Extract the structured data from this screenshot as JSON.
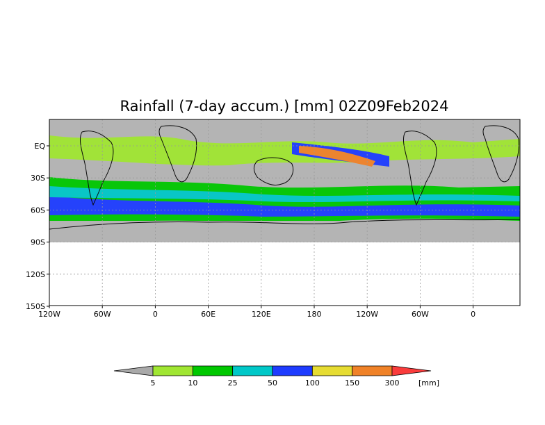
{
  "title": "Rainfall (7-day accum.) [mm] 02Z09Feb2024",
  "map": {
    "y_ticks": [
      "EQ",
      "30S",
      "60S",
      "90S",
      "120S",
      "150S"
    ],
    "x_ticks": [
      "120W",
      "60W",
      "0",
      "60E",
      "120E",
      "180",
      "120W",
      "60W",
      "0"
    ],
    "background_color": "#b4b4b4"
  },
  "legend": {
    "unit": "[mm]",
    "labels": [
      "5",
      "10",
      "25",
      "50",
      "100",
      "150",
      "300"
    ],
    "colors": [
      "#a9a9a9",
      "#a0e632",
      "#00c800",
      "#00c8c8",
      "#1e3cff",
      "#e6dc32",
      "#f08228",
      "#fa3c3c"
    ]
  }
}
